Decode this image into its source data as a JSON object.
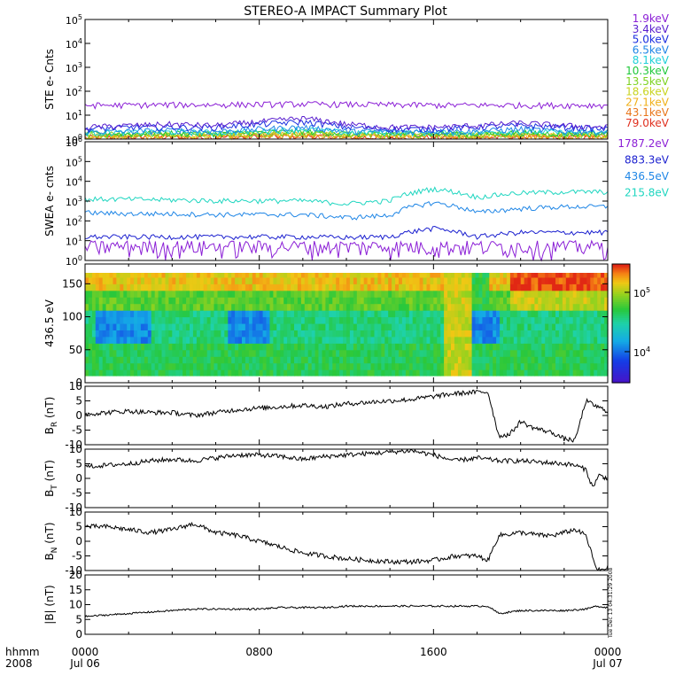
{
  "title": "STEREO-A IMPACT Summary Plot",
  "footer": {
    "label_top": "hhmm",
    "label_bottom": "2008",
    "stamp": "Tue Dec 13 04:31:29 2008"
  },
  "chart_data": [
    {
      "id": "ste",
      "type": "line",
      "ylabel": "STE e- Cnts",
      "y_scale": "log",
      "ylim": [
        1,
        100000
      ],
      "y_ticks": [
        "10^0",
        "10^1",
        "10^2",
        "10^3",
        "10^4",
        "10^5"
      ],
      "series": [
        {
          "name": "1.9keV",
          "color": "#8B1FD6",
          "values": [
            25,
            25,
            26,
            26,
            27,
            28,
            27,
            26,
            25,
            25,
            25,
            25,
            25
          ]
        },
        {
          "name": "3.4keV",
          "color": "#5A1FCF",
          "values": [
            3.0,
            3.5,
            4.0,
            3.5,
            5.0,
            7.0,
            4.0,
            3.0,
            3.0,
            3.5,
            4.5,
            3.5,
            3.0
          ]
        },
        {
          "name": "5.0keV",
          "color": "#1A2EE0",
          "values": [
            2.5,
            3.0,
            3.0,
            3.0,
            4.0,
            5.0,
            3.0,
            2.5,
            2.5,
            3.0,
            3.5,
            3.0,
            2.5
          ]
        },
        {
          "name": "6.5keV",
          "color": "#1F86E6",
          "values": [
            2.0,
            2.0,
            2.2,
            2.0,
            2.5,
            3.0,
            2.0,
            2.0,
            2.0,
            2.0,
            2.5,
            2.0,
            2.0
          ]
        },
        {
          "name": "8.1keV",
          "color": "#1FD0D8",
          "values": [
            1.8,
            1.8,
            1.9,
            1.8,
            2.0,
            2.5,
            1.8,
            1.8,
            1.8,
            1.8,
            2.0,
            1.8,
            1.8
          ]
        },
        {
          "name": "10.3keV",
          "color": "#1FC83A",
          "values": [
            1.6,
            1.6,
            1.7,
            1.6,
            1.8,
            2.0,
            1.6,
            1.6,
            1.6,
            1.6,
            1.8,
            1.6,
            1.6
          ]
        },
        {
          "name": "13.5keV",
          "color": "#7ED321",
          "values": [
            1.5,
            1.5,
            1.5,
            1.5,
            1.6,
            1.8,
            1.5,
            1.5,
            1.5,
            1.5,
            1.6,
            1.5,
            1.5
          ]
        },
        {
          "name": "18.6keV",
          "color": "#C8D41F",
          "values": [
            1.4,
            1.4,
            1.4,
            1.4,
            1.5,
            1.6,
            1.4,
            1.4,
            1.4,
            1.4,
            1.5,
            1.4,
            1.4
          ]
        },
        {
          "name": "27.1keV",
          "color": "#F0B01A",
          "values": [
            1.3,
            1.3,
            1.3,
            1.3,
            1.4,
            1.5,
            1.3,
            1.3,
            1.3,
            1.3,
            1.4,
            1.3,
            1.3
          ]
        },
        {
          "name": "43.1keV",
          "color": "#E8761A",
          "values": [
            1.2,
            1.2,
            1.2,
            1.2,
            1.3,
            1.4,
            1.2,
            1.2,
            1.2,
            1.2,
            1.3,
            1.2,
            1.2
          ]
        },
        {
          "name": "79.0keV",
          "color": "#E0301F",
          "values": [
            1.1,
            1.1,
            1.1,
            1.1,
            1.2,
            1.3,
            1.1,
            1.1,
            1.1,
            1.1,
            1.2,
            1.1,
            1.1
          ]
        }
      ]
    },
    {
      "id": "swea",
      "type": "line",
      "ylabel": "SWEA e- cnts",
      "y_scale": "log",
      "ylim": [
        1,
        1000000
      ],
      "y_ticks": [
        "10^0",
        "10^1",
        "10^2",
        "10^3",
        "10^4",
        "10^5",
        "10^6"
      ],
      "series": [
        {
          "name": "1787.2eV",
          "color": "#8B1FD6",
          "values": [
            3,
            3,
            3,
            3,
            3,
            3,
            3,
            3,
            3,
            3,
            3,
            3,
            3
          ]
        },
        {
          "name": "883.3eV",
          "color": "#1A1FCF",
          "values": [
            15,
            15,
            15,
            15,
            15,
            15,
            14,
            15,
            40,
            15,
            25,
            25,
            25
          ]
        },
        {
          "name": "436.5eV",
          "color": "#1F86E6",
          "values": [
            250,
            220,
            220,
            200,
            200,
            200,
            140,
            180,
            800,
            250,
            400,
            500,
            500
          ]
        },
        {
          "name": "215.8eV",
          "color": "#1FD6C0",
          "values": [
            1200,
            1200,
            1100,
            1000,
            1000,
            1000,
            700,
            1000,
            4000,
            1500,
            2500,
            2800,
            2800
          ]
        }
      ]
    },
    {
      "id": "pad",
      "type": "heatmap",
      "ylabel": "436.5 eV",
      "ylim": [
        0,
        180
      ],
      "y_ticks": [
        0,
        50,
        100,
        150
      ],
      "colorbar_ticks": [
        "10^4",
        "10^5"
      ],
      "colorbar_range": [
        3000,
        300000
      ],
      "low_pitch_regions_hours": [
        [
          0.5,
          3.0
        ],
        [
          6.5,
          8.5
        ],
        [
          17.8,
          19.0
        ]
      ],
      "high_count_regions_hours": [
        [
          19.5,
          24.0
        ]
      ]
    },
    {
      "id": "br",
      "type": "line",
      "ylabel": "B_R (nT)",
      "ylim": [
        -10,
        10
      ],
      "y_ticks": [
        -10,
        -5,
        0,
        5,
        10
      ],
      "x": [
        0,
        1,
        2,
        3,
        4,
        5,
        6,
        7,
        8,
        9,
        10,
        11,
        12,
        13,
        14,
        15,
        16,
        17,
        18,
        18.5,
        19,
        19.5,
        20,
        20.5,
        21,
        21.5,
        22,
        22.5,
        23,
        23.5,
        24
      ],
      "values": [
        0.5,
        1.0,
        1.5,
        1.0,
        1.0,
        0,
        1.0,
        2.0,
        2.5,
        3.0,
        3.5,
        3.0,
        4.0,
        4.5,
        5.0,
        5.5,
        6.5,
        7.5,
        8.0,
        8.0,
        -7.0,
        -6.5,
        -2.0,
        -4.0,
        -5.0,
        -6.0,
        -8.0,
        -8.5,
        5.0,
        3.0,
        1.5
      ],
      "color": "#000000"
    },
    {
      "id": "bt",
      "type": "line",
      "ylabel": "B_T (nT)",
      "ylim": [
        -10,
        10
      ],
      "y_ticks": [
        -10,
        -5,
        0,
        5,
        10
      ],
      "x": [
        0,
        1,
        2,
        3,
        4,
        5,
        6,
        7,
        8,
        9,
        10,
        11,
        12,
        13,
        14,
        15,
        16,
        17,
        18,
        19,
        20,
        21,
        22,
        22.5,
        23,
        23.3,
        23.6,
        24
      ],
      "values": [
        4.0,
        4.5,
        5.0,
        6.0,
        6.5,
        6.0,
        7.0,
        8.0,
        8.0,
        7.5,
        6.5,
        7.5,
        8.0,
        8.5,
        9.0,
        9.5,
        8.0,
        6.0,
        7.0,
        6.0,
        6.0,
        5.5,
        5.0,
        4.5,
        3.0,
        -3.0,
        1.0,
        0.0
      ],
      "color": "#000000"
    },
    {
      "id": "bn",
      "type": "line",
      "ylabel": "B_N (nT)",
      "ylim": [
        -10,
        10
      ],
      "y_ticks": [
        -10,
        -5,
        0,
        5,
        10
      ],
      "x": [
        0,
        1,
        2,
        3,
        4,
        5,
        6,
        7,
        8,
        9,
        10,
        11,
        12,
        13,
        14,
        15,
        16,
        17,
        18,
        18.5,
        19,
        20,
        21,
        21.5,
        22,
        22.5,
        23,
        23.5,
        24
      ],
      "values": [
        5.0,
        5.0,
        4.0,
        3.0,
        4.0,
        6.0,
        3.0,
        2.0,
        0,
        -2.0,
        -4.0,
        -5.0,
        -6.0,
        -6.5,
        -7.0,
        -7.0,
        -6.5,
        -5.0,
        -5.0,
        -6.5,
        2.0,
        3.0,
        2.0,
        2.0,
        3.0,
        4.0,
        2.0,
        -10.0,
        -9.0
      ],
      "color": "#000000"
    },
    {
      "id": "btot",
      "type": "line",
      "ylabel": "|B| (nT)",
      "ylim": [
        0,
        20
      ],
      "y_ticks": [
        0,
        5,
        10,
        15,
        20
      ],
      "x": [
        0,
        1,
        2,
        3,
        4,
        5,
        6,
        7,
        8,
        9,
        10,
        11,
        12,
        13,
        14,
        15,
        16,
        17,
        18,
        18.5,
        19,
        20,
        21,
        22,
        23,
        23.5,
        24
      ],
      "values": [
        6.0,
        6.5,
        7.0,
        7.5,
        8.0,
        8.5,
        8.5,
        8.5,
        8.5,
        9.0,
        9.0,
        9.0,
        9.5,
        9.5,
        9.5,
        9.5,
        9.5,
        9.5,
        9.5,
        9.5,
        7.0,
        8.0,
        8.0,
        8.0,
        8.5,
        9.5,
        9.0
      ],
      "color": "#000000"
    }
  ],
  "x_axis": {
    "range_hours": [
      0,
      24
    ],
    "tick_labels": [
      {
        "hour": 0,
        "top": "0000",
        "bottom": "Jul 06"
      },
      {
        "hour": 8,
        "top": "0800",
        "bottom": ""
      },
      {
        "hour": 16,
        "top": "1600",
        "bottom": ""
      },
      {
        "hour": 24,
        "top": "0000",
        "bottom": "Jul 07"
      }
    ]
  }
}
